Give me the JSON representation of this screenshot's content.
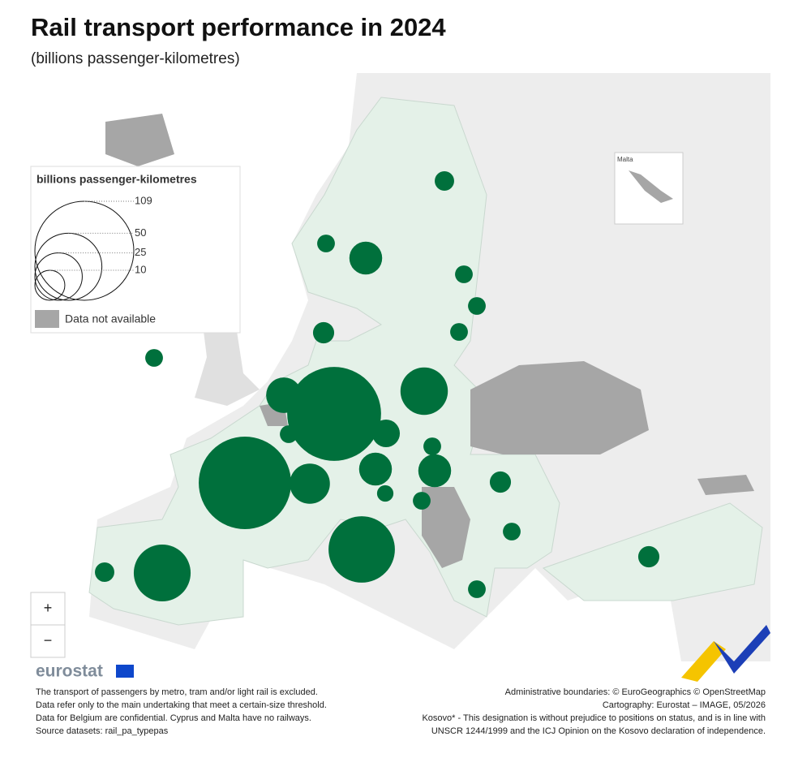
{
  "header": {
    "title": "Rail transport performance in 2024",
    "subtitle": "(billions passenger-kilometres)"
  },
  "legend": {
    "title": "billions passenger-kilometres",
    "sizes": [
      109,
      50,
      25,
      10
    ],
    "no_data": "Data not available"
  },
  "map": {
    "inset_label": "Malta",
    "circle_color": "#00703c",
    "values": [
      95,
      98,
      49,
      36,
      25,
      3.5,
      14,
      3.5,
      8.5,
      12,
      18,
      3.5,
      12,
      3,
      3.5,
      5,
      3.5,
      3.5,
      5,
      4.2,
      5,
      3.5,
      12,
      4.2,
      3.5,
      3.5,
      3.5
    ]
  },
  "controls": {
    "zoom_in": "+",
    "zoom_out": "−"
  },
  "footer": {
    "logo": "eurostat",
    "notes": [
      "The transport of passengers by metro, tram and/or light rail is excluded.",
      "Data refer only to the main undertaking that meet a certain-size threshold.",
      "Data for Belgium are confidential. Cyprus and Malta have no railways.",
      "Source datasets: rail_pa_typepas"
    ],
    "credits": [
      "Administrative boundaries: © EuroGeographics © OpenStreetMap",
      "Cartography: Eurostat – IMAGE, 05/2026",
      "Kosovo* - This designation is without prejudice to positions on status, and is in line with",
      "UNSCR 1244/1999 and the ICJ Opinion on the Kosovo declaration of independence."
    ]
  }
}
